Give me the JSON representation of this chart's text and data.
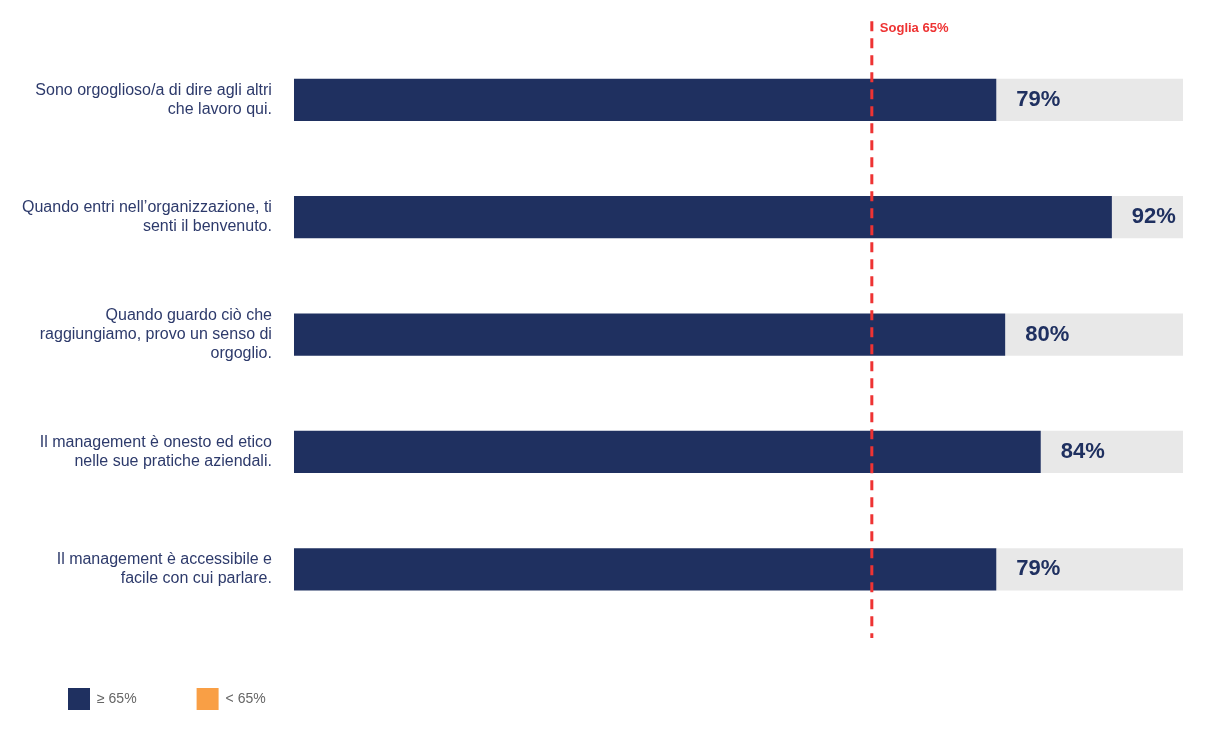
{
  "chart_data": {
    "type": "bar",
    "orientation": "horizontal",
    "stacked": true,
    "categories": [
      "Sono orgoglioso/a di dire agli altri che lavoro qui.",
      "Quando entri nell’organizzazione, ti senti il benvenuto.",
      "Quando guardo ciò che raggiungiamo, provo un senso di orgoglio.",
      "Il management è onesto ed etico nelle sue pratiche aziendali.",
      "Il management è accessibile e facile con cui parlare."
    ],
    "series": [
      {
        "name": "≥ 65%",
        "color": "#1f3060",
        "values": [
          79,
          92,
          80,
          84,
          79
        ],
        "value_labels": [
          "79%",
          "92%",
          "80%",
          "84%",
          "79%"
        ]
      },
      {
        "name": "< 65%",
        "color": "#f99f45",
        "values": [
          null,
          null,
          null,
          null,
          null
        ]
      },
      {
        "color": "#e8e8e8",
        "values": [
          21,
          8,
          20,
          16,
          21
        ]
      }
    ],
    "xlim": [
      0,
      100
    ],
    "tick_labels": "y",
    "legend": "bottom",
    "ref_lines": [
      {
        "axis": "x",
        "value": 65,
        "label": "Soglia 65%",
        "color": "#ee3333",
        "line_style": "dashed"
      }
    ]
  }
}
